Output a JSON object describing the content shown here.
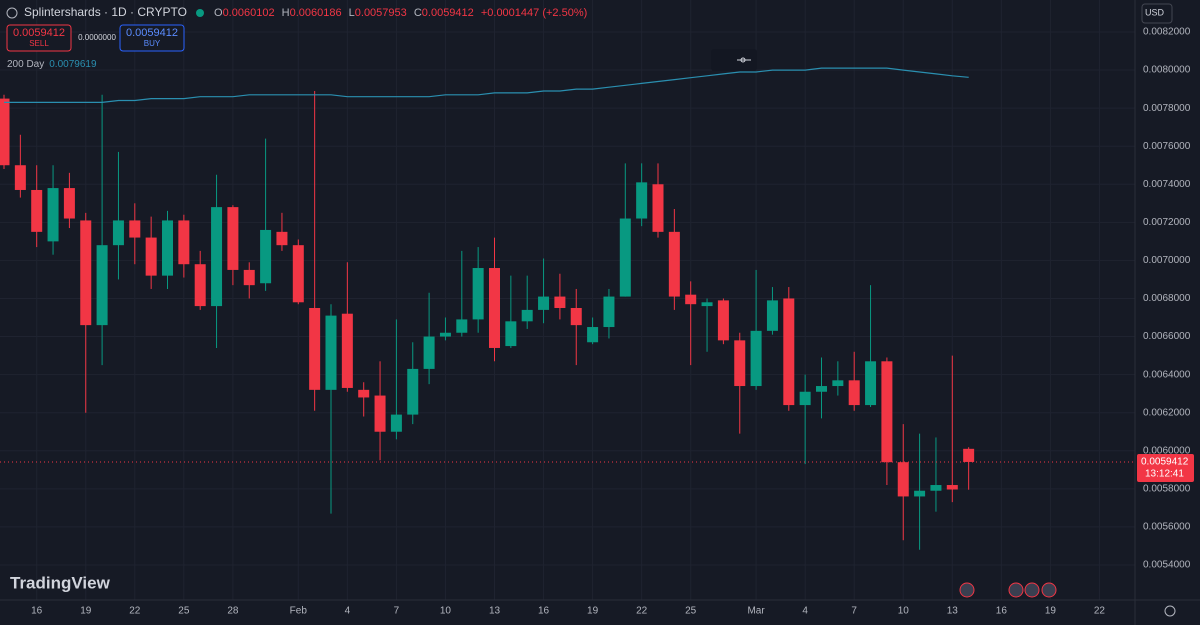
{
  "header": {
    "symbol": "Splintershards · 1D · CRYPTO",
    "open_label": "O",
    "high_label": "H",
    "low_label": "L",
    "close_label": "C",
    "change": "+0.0001447 (+2.50%)",
    "sell_price": "0.0059412",
    "sell": "SELL",
    "spread": "0.0000000",
    "buy_price": "0.0059412",
    "buy": "BUY",
    "currency": "USD",
    "countdown": "13:12:41",
    "brand": "TradingView"
  },
  "chart_data": {
    "type": "candlestick",
    "categories": [
      null,
      null,
      "16",
      null,
      null,
      "19",
      null,
      null,
      "22",
      null,
      null,
      "25",
      null,
      null,
      "28",
      null,
      null,
      null,
      "Feb",
      null,
      null,
      "4",
      null,
      null,
      "7",
      null,
      null,
      "10",
      null,
      null,
      "13",
      null,
      null,
      "16",
      null,
      null,
      "19",
      null,
      null,
      "22",
      null,
      null,
      "25",
      null,
      null,
      null,
      "Mar",
      null,
      null,
      "4",
      null,
      null,
      "7",
      null,
      null,
      "10",
      null,
      null,
      "13",
      null,
      null,
      "16",
      null,
      null,
      "19",
      null,
      null,
      "22"
    ],
    "open": [
      0.00785,
      0.0075,
      0.00737,
      0.0071,
      0.00738,
      0.00721,
      0.00666,
      0.00708,
      0.00721,
      0.00712,
      0.00692,
      0.00721,
      0.00698,
      0.00676,
      0.00728,
      0.00695,
      0.00688,
      0.00715,
      0.00708,
      0.00675,
      0.00632,
      0.00672,
      0.00632,
      0.00629,
      0.0061,
      0.00619,
      0.00643,
      0.0066,
      0.00662,
      0.00669,
      0.00696,
      0.00655,
      0.00668,
      0.00674,
      0.00681,
      0.00675,
      0.00657,
      0.00665,
      0.00681,
      0.00722,
      0.0074,
      0.00715,
      0.00682,
      0.00676,
      0.00679,
      0.00658,
      0.00634,
      0.00663,
      0.0068,
      0.00624,
      0.00631,
      0.00634,
      0.00637,
      0.00624,
      0.00647,
      0.00594,
      0.00576,
      0.00579,
      0.00582,
      0.0060102,
      null,
      null,
      null,
      null,
      null,
      null,
      null,
      null
    ],
    "high": [
      0.00787,
      0.00766,
      0.0075,
      0.0075,
      0.00746,
      0.00725,
      0.00787,
      0.00757,
      0.0073,
      0.00723,
      0.00726,
      0.00724,
      0.00705,
      0.00745,
      0.00729,
      0.00699,
      0.00764,
      0.00725,
      0.00711,
      0.00789,
      0.00677,
      0.00699,
      0.00636,
      0.00647,
      0.00669,
      0.00657,
      0.00683,
      0.0067,
      0.00705,
      0.00707,
      0.00712,
      0.00692,
      0.00692,
      0.00701,
      0.00693,
      0.00685,
      0.0067,
      0.00685,
      0.00751,
      0.00751,
      0.00751,
      0.00727,
      0.00689,
      0.0068,
      0.0068,
      0.00662,
      0.00695,
      0.00686,
      0.00686,
      0.0064,
      0.00649,
      0.00647,
      0.00652,
      0.00687,
      0.00649,
      0.00614,
      0.00609,
      0.00607,
      0.0065,
      0.0060186,
      null,
      null,
      null,
      null,
      null,
      null,
      null,
      null
    ],
    "low": [
      0.00748,
      0.00733,
      0.00707,
      0.00703,
      0.00717,
      0.0062,
      0.00645,
      0.0069,
      0.00698,
      0.00685,
      0.00685,
      0.00691,
      0.00674,
      0.00654,
      0.00687,
      0.0068,
      0.00684,
      0.00705,
      0.00677,
      0.00621,
      0.00567,
      0.00631,
      0.00618,
      0.00595,
      0.00606,
      0.00614,
      0.00635,
      0.00658,
      0.0066,
      0.00662,
      0.00647,
      0.00654,
      0.00664,
      0.00667,
      0.00669,
      0.00645,
      0.00656,
      0.00659,
      0.00681,
      0.00718,
      0.00712,
      0.00674,
      0.00645,
      0.00652,
      0.00656,
      0.00609,
      0.00632,
      0.00661,
      0.00621,
      0.00593,
      0.00617,
      0.00629,
      0.00621,
      0.00623,
      0.00582,
      0.00553,
      0.00548,
      0.00568,
      0.00573,
      0.0057953,
      null,
      null,
      null,
      null,
      null,
      null,
      null,
      null
    ],
    "close": [
      0.0075,
      0.00737,
      0.00715,
      0.00738,
      0.00722,
      0.00666,
      0.00708,
      0.00721,
      0.00712,
      0.00692,
      0.00721,
      0.00698,
      0.00676,
      0.00728,
      0.00695,
      0.00687,
      0.00716,
      0.00708,
      0.00678,
      0.00632,
      0.00671,
      0.00633,
      0.00628,
      0.0061,
      0.00619,
      0.00643,
      0.0066,
      0.00662,
      0.00669,
      0.00696,
      0.00654,
      0.00668,
      0.00674,
      0.00681,
      0.00675,
      0.00666,
      0.00665,
      0.00681,
      0.00722,
      0.00741,
      0.00715,
      0.00681,
      0.00677,
      0.00678,
      0.00658,
      0.00634,
      0.00663,
      0.00679,
      0.00624,
      0.00631,
      0.00634,
      0.00637,
      0.00624,
      0.00647,
      0.00594,
      0.00576,
      0.00579,
      0.00582,
      0.0057965,
      0.0059412,
      null,
      null,
      null,
      null,
      null,
      null,
      null,
      null
    ],
    "up_color": "#089981",
    "down_color": "#f23645",
    "series": [
      {
        "name": "200 Day",
        "color": "#2a8fb0",
        "values": [
          0.00783,
          0.00783,
          0.00783,
          0.00783,
          0.00783,
          0.00783,
          0.00783,
          0.00784,
          0.00784,
          0.00785,
          0.00785,
          0.00785,
          0.00786,
          0.00786,
          0.00786,
          0.00787,
          0.00787,
          0.00787,
          0.00787,
          0.00787,
          0.00787,
          0.00786,
          0.00786,
          0.00786,
          0.00786,
          0.00786,
          0.00786,
          0.00787,
          0.00787,
          0.00787,
          0.00788,
          0.00788,
          0.00788,
          0.00789,
          0.00789,
          0.0079,
          0.0079,
          0.00791,
          0.00792,
          0.00793,
          0.00794,
          0.00795,
          0.00796,
          0.00797,
          0.00798,
          0.00799,
          0.00799,
          0.008,
          0.008,
          0.008,
          0.00801,
          0.00801,
          0.00801,
          0.00801,
          0.00801,
          0.008,
          0.00799,
          0.00798,
          0.00797,
          0.0079619,
          null,
          null,
          null,
          null,
          null,
          null,
          null,
          null
        ]
      }
    ],
    "ylim": [
      0.005216,
      0.008368
    ],
    "yticks": [
      {
        "value": 0.0054,
        "label": "0.0054000"
      },
      {
        "value": 0.0056,
        "label": "0.0056000"
      },
      {
        "value": 0.0058,
        "label": "0.0058000"
      },
      {
        "value": 0.006,
        "label": "0.0060000"
      },
      {
        "value": 0.0062,
        "label": "0.0062000"
      },
      {
        "value": 0.0064,
        "label": "0.0064000"
      },
      {
        "value": 0.0066,
        "label": "0.0066000"
      },
      {
        "value": 0.0068,
        "label": "0.0068000"
      },
      {
        "value": 0.007,
        "label": "0.0070000"
      },
      {
        "value": 0.0072,
        "label": "0.0072000"
      },
      {
        "value": 0.0074,
        "label": "0.0074000"
      },
      {
        "value": 0.0076,
        "label": "0.0076000"
      },
      {
        "value": 0.0078,
        "label": "0.0078000"
      },
      {
        "value": 0.008,
        "label": "0.0080000"
      },
      {
        "value": 0.0082,
        "label": "0.0082000"
      }
    ],
    "grid": true
  }
}
